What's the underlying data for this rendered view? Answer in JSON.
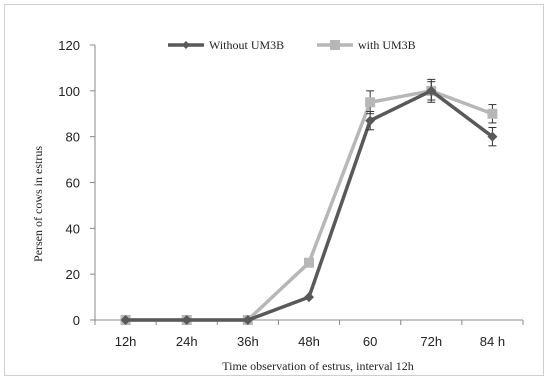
{
  "chart_data": {
    "type": "line",
    "title": "",
    "xlabel": "Time observation of estrus, interval 12h",
    "ylabel": "Persen of cows in estrus",
    "categories": [
      "12h",
      "24h",
      "36h",
      "48h",
      "60",
      "72h",
      "84 h"
    ],
    "ylim": [
      0,
      120
    ],
    "yticks": [
      0,
      20,
      40,
      60,
      80,
      100,
      120
    ],
    "grid": false,
    "legend_position": "top",
    "series": [
      {
        "name": "Without UM3B",
        "marker": "diamond",
        "color": "#595959",
        "values": [
          0,
          0,
          0,
          10,
          87,
          100,
          80
        ],
        "errors": [
          0,
          0,
          0,
          0,
          4,
          4,
          4
        ]
      },
      {
        "name": "with UM3B",
        "marker": "square",
        "color": "#b7b7b7",
        "values": [
          0,
          0,
          0,
          25,
          95,
          100,
          90
        ],
        "errors": [
          0,
          0,
          0,
          0,
          5,
          5,
          4
        ]
      }
    ]
  }
}
